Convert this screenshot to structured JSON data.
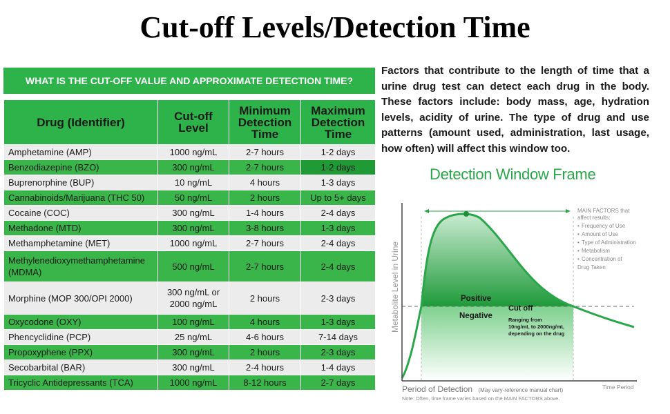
{
  "title": "Cut-off Levels/Detection Time",
  "table": {
    "banner": "WHAT IS THE CUT-OFF VALUE AND APPROXIMATE DETECTION TIME?",
    "headers": [
      "Drug (Identifier)",
      "Cut-off Level",
      "Minimum Detection Time",
      "Maximum Detection Time"
    ],
    "rows": [
      {
        "drug": "Amphetamine (AMP)",
        "cutoff": "1000 ng/mL",
        "min": "2-7 hours",
        "max": "1-2 days"
      },
      {
        "drug": "Benzodiazepine (BZO)",
        "cutoff": "300 ng/mL",
        "min": "2-7 hours",
        "max": "1-2 days"
      },
      {
        "drug": "Buprenorphine (BUP)",
        "cutoff": "10 ng/mL",
        "min": "4 hours",
        "max": "1-3 days"
      },
      {
        "drug": "Cannabinoids/Marijuana (THC 50)",
        "cutoff": "50 ng/mL",
        "min": "2 hours",
        "max": "Up to 5+ days"
      },
      {
        "drug": "Cocaine (COC)",
        "cutoff": "300 ng/mL",
        "min": "1-4 hours",
        "max": "2-4 days"
      },
      {
        "drug": "Methadone (MTD)",
        "cutoff": "300 ng/mL",
        "min": "3-8 hours",
        "max": "1-3 days"
      },
      {
        "drug": "Methamphetamine (MET)",
        "cutoff": "1000 ng/mL",
        "min": "2-7 hours",
        "max": "2-4 days"
      },
      {
        "drug": "Methylenedioxymethamphetamine (MDMA)",
        "cutoff": "500 ng/mL",
        "min": "2-7 hours",
        "max": "2-4 days"
      },
      {
        "drug": "Morphine (MOP 300/OPI 2000)",
        "cutoff": "300 ng/mL or 2000 ng/mL",
        "min": "2 hours",
        "max": "2-3 days"
      },
      {
        "drug": "Oxycodone (OXY)",
        "cutoff": "100 ng/mL",
        "min": "4 hours",
        "max": "1-3 days"
      },
      {
        "drug": "Phencyclidine (PCP)",
        "cutoff": "25 ng/mL",
        "min": "4-6 hours",
        "max": "7-14 days"
      },
      {
        "drug": "Propoxyphene (PPX)",
        "cutoff": "300 ng/mL",
        "min": "2 hours",
        "max": "2-3 days"
      },
      {
        "drug": "Secobarbital (BAR)",
        "cutoff": "300 ng/mL",
        "min": "2-4 hours",
        "max": "1-4 days"
      },
      {
        "drug": "Tricyclic Antidepressants (TCA)",
        "cutoff": "1000 ng/mL",
        "min": "8-12 hours",
        "max": "2-7 days"
      }
    ]
  },
  "factors_text": "Factors that contribute to the length of time that a urine drug test can detect each drug in the body. These factors include: body mass, age, hydration levels, acidity of urine. The type of drug and use patterns (amount used, administration, last usage, how often) will affect this window too.",
  "chart": {
    "title": "Detection Window Frame",
    "y_label": "Metabolite Level in Urine",
    "x_label": "Period of Detection",
    "x_label_note": "(May vary-reference manual chart)",
    "note": "Note: Often, time frame varies based on the MAIN FACTORS above.",
    "x_axis_end": "Time Period",
    "positive": "Positive",
    "negative": "Negative",
    "cutoff": "Cut off",
    "range_lines": [
      "Ranging from",
      "10ng/mL to 2000ng/mL",
      "depending on the drug"
    ],
    "factors_header": [
      "MAIN FACTORS that",
      "affect results:"
    ],
    "factors_items": [
      [
        "Frequency of Use"
      ],
      [
        "Amount of Use"
      ],
      [
        "Type of Administration"
      ],
      [
        "Metabolism"
      ],
      [
        "Concentration of",
        "Drug Taken"
      ]
    ],
    "colors": {
      "green": "#2aa64a",
      "dark_green": "#1f8f3a",
      "light_green": "#d8f0dc"
    }
  }
}
